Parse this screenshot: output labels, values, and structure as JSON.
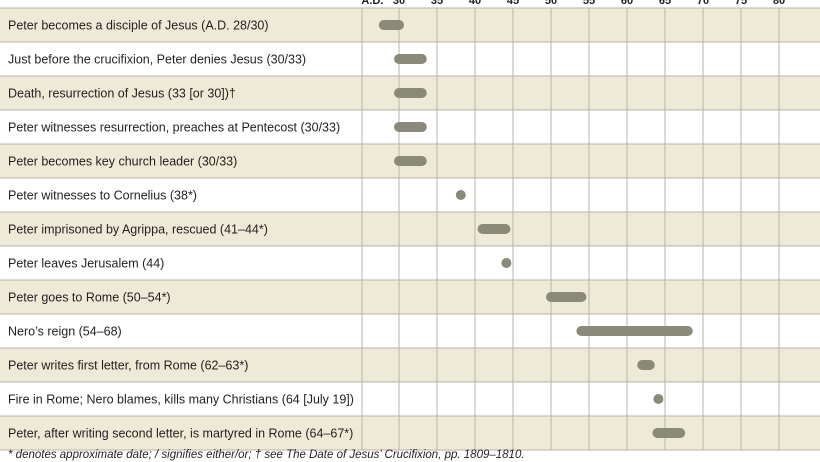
{
  "chart_data": {
    "type": "timeline",
    "x_axis_prefix": "A.D.",
    "x_ticks": [
      30,
      35,
      40,
      45,
      50,
      55,
      60,
      65,
      70,
      75,
      80
    ],
    "xlim": [
      25,
      83
    ],
    "grid": true,
    "colors": {
      "band": "#eeead8",
      "bar": "#8b8a7a",
      "grid": "#b9b6a9",
      "text": "#231f20"
    },
    "rows": [
      {
        "label": "Peter becomes a disciple of Jesus (A.D. 28/30)",
        "start": 28,
        "end": 30
      },
      {
        "label": "Just before the crucifixion, Peter denies Jesus (30/33)",
        "start": 30,
        "end": 33
      },
      {
        "label": "Death, resurrection of Jesus (33 [or 30])†",
        "start": 30,
        "end": 33
      },
      {
        "label": "Peter witnesses resurrection, preaches at Pentecost (30/33)",
        "start": 30,
        "end": 33
      },
      {
        "label": "Peter becomes key church leader (30/33)",
        "start": 30,
        "end": 33
      },
      {
        "label": "Peter witnesses to Cornelius (38*)",
        "start": 38,
        "end": 38
      },
      {
        "label": "Peter imprisoned by Agrippa, rescued (41–44*)",
        "start": 41,
        "end": 44
      },
      {
        "label": "Peter leaves Jerusalem (44)",
        "start": 44,
        "end": 44
      },
      {
        "label": "Peter goes to Rome (50–54*)",
        "start": 50,
        "end": 54
      },
      {
        "label": "Nero’s reign (54–68)",
        "start": 54,
        "end": 68
      },
      {
        "label": "Peter writes first letter, from Rome (62–63*)",
        "start": 62,
        "end": 63
      },
      {
        "label": "Fire in Rome; Nero blames, kills many Christians (64 [July 19])",
        "start": 64,
        "end": 64
      },
      {
        "label": "Peter, after writing second letter, is martyred in Rome (64–67*)",
        "start": 64,
        "end": 67
      }
    ]
  },
  "footnote": "* denotes approximate date; / signifies either/or; † see The Date of Jesus’ Crucifixion, pp. 1809–1810."
}
